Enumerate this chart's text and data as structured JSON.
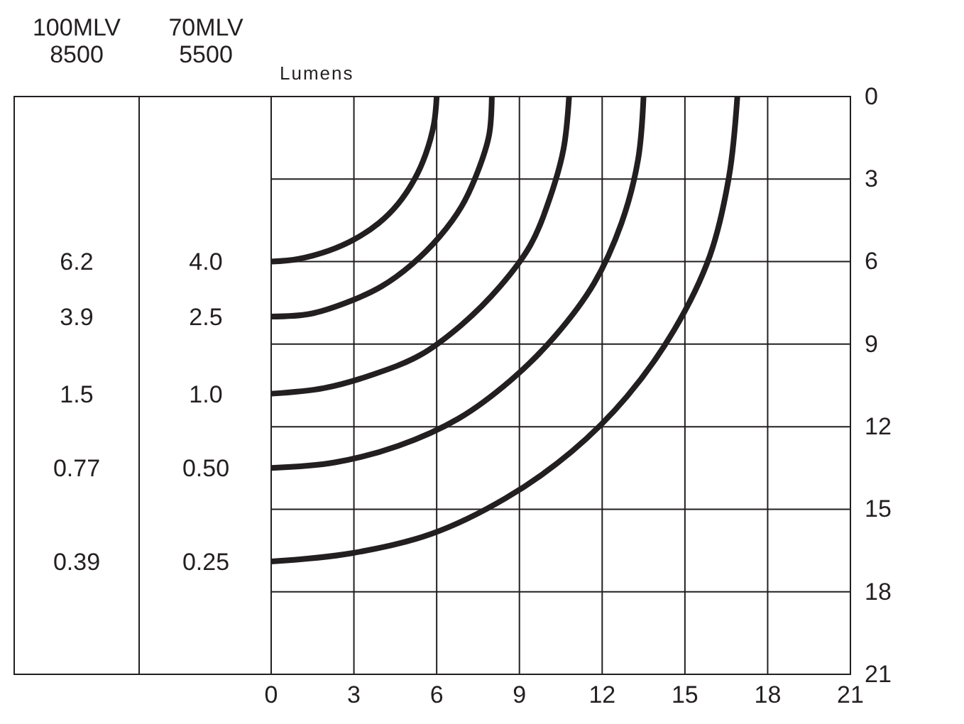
{
  "chart_data": {
    "type": "line",
    "xlim": [
      0,
      21
    ],
    "ylim": [
      21,
      0
    ],
    "xticks": [
      0,
      3,
      6,
      9,
      12,
      15,
      18,
      21
    ],
    "yticks": [
      0,
      3,
      6,
      9,
      12,
      15,
      18,
      21
    ],
    "grid": true,
    "marker": "none",
    "line_style": "solid",
    "annotations": [
      "100MLV 8500",
      "70MLV 5500",
      "Lumens",
      "6.2",
      "4.0",
      "3.9",
      "2.5",
      "1.5",
      "1.0",
      "0.77",
      "0.50",
      "0.39",
      "0.25"
    ],
    "series": [
      {
        "color": "#231f20",
        "x": [
          0,
          1.0,
          2.1,
          3.0,
          3.9,
          4.6,
          5.2,
          5.6,
          5.9,
          6
        ],
        "values": [
          6,
          5.9,
          5.6,
          5.2,
          4.6,
          3.9,
          3.0,
          2.1,
          1.0,
          0
        ]
      },
      {
        "color": "#231f20",
        "x": [
          0,
          1.4,
          2.7,
          4.0,
          5.1,
          6.1,
          6.9,
          7.5,
          7.9,
          8
        ],
        "values": [
          8,
          7.9,
          7.5,
          6.9,
          6.1,
          5.1,
          4.0,
          2.7,
          1.4,
          0
        ]
      },
      {
        "color": "#231f20",
        "x": [
          0,
          1.9,
          3.7,
          5.4,
          6.9,
          8.3,
          9.4,
          10.1,
          10.6,
          10.8
        ],
        "values": [
          10.8,
          10.6,
          10.1,
          9.4,
          8.3,
          6.9,
          5.4,
          3.7,
          1.9,
          0
        ]
      },
      {
        "color": "#231f20",
        "x": [
          0,
          2.3,
          4.6,
          6.8,
          8.7,
          10.3,
          11.7,
          12.7,
          13.3,
          13.5
        ],
        "values": [
          13.5,
          13.3,
          12.7,
          11.7,
          10.3,
          8.7,
          6.8,
          4.6,
          2.3,
          0
        ]
      },
      {
        "color": "#231f20",
        "x": [
          0,
          2.9,
          5.8,
          8.5,
          10.9,
          12.9,
          14.6,
          15.9,
          16.6,
          16.9
        ],
        "values": [
          16.9,
          16.6,
          15.9,
          14.6,
          12.9,
          10.9,
          8.5,
          5.8,
          2.9,
          0
        ]
      }
    ]
  }
}
